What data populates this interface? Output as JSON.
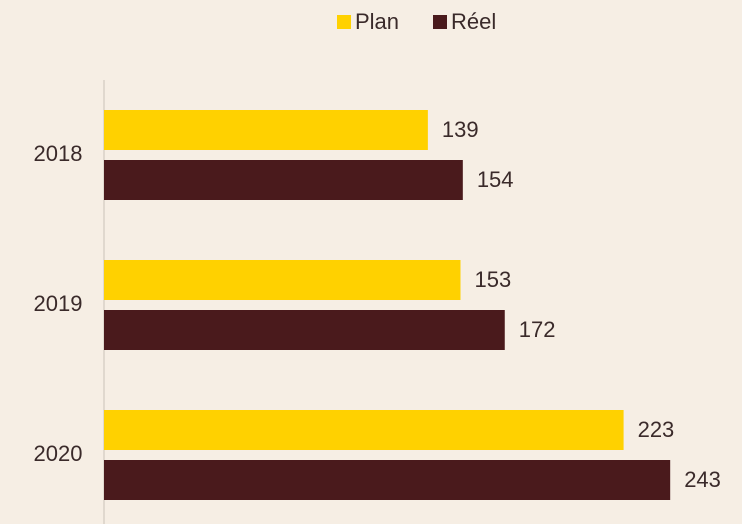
{
  "chart_data": {
    "type": "hbar",
    "categories": [
      "2018",
      "2019",
      "2020"
    ],
    "series": [
      {
        "name": "Plan",
        "color": "#ffd100",
        "values": [
          139,
          153,
          223
        ]
      },
      {
        "name": "Réel",
        "color": "#4a1a1c",
        "values": [
          154,
          172,
          243
        ]
      }
    ],
    "legend": "top"
  }
}
